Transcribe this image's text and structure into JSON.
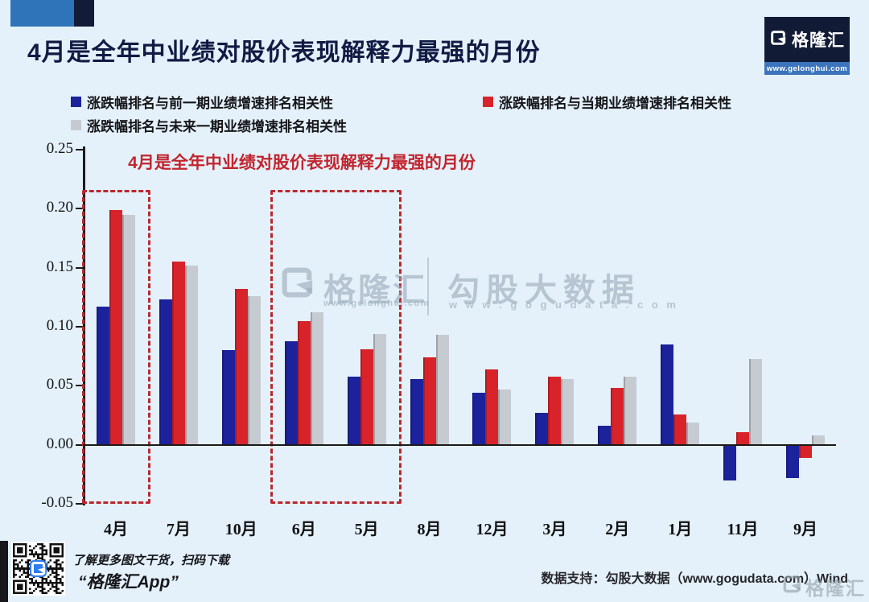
{
  "page": {
    "background": "#e4f1fa"
  },
  "header": {
    "title": "4月是全年中业绩对股价表现解释力最强的月份",
    "brand": {
      "name": "格隆汇",
      "url": "www.gelonghui.com"
    }
  },
  "legend": {
    "items": [
      {
        "label": "涨跌幅排名与前一期业绩增速排名相关性",
        "color": "#1c229b"
      },
      {
        "label": "涨跌幅排名与当期业绩增速排名相关性",
        "color": "#d9232a"
      },
      {
        "label": "涨跌幅排名与未来一期业绩增速排名相关性",
        "color": "#c6cbd1"
      }
    ]
  },
  "chart_data": {
    "type": "bar",
    "title": "4月是全年中业绩对股价表现解释力最强的月份",
    "title_color": "#c2252e",
    "categories": [
      "4月",
      "7月",
      "10月",
      "6月",
      "5月",
      "8月",
      "12月",
      "3月",
      "2月",
      "1月",
      "11月",
      "9月"
    ],
    "series": [
      {
        "name": "涨跌幅排名与前一期业绩增速排名相关性",
        "color": "#1c229b",
        "values": [
          0.117,
          0.123,
          0.08,
          0.088,
          0.058,
          0.056,
          0.044,
          0.027,
          0.016,
          0.085,
          -0.03,
          -0.028
        ]
      },
      {
        "name": "涨跌幅排名与当期业绩增速排名相关性",
        "color": "#d9232a",
        "values": [
          0.199,
          0.155,
          0.132,
          0.105,
          0.081,
          0.074,
          0.064,
          0.058,
          0.048,
          0.026,
          0.011,
          -0.011
        ]
      },
      {
        "name": "涨跌幅排名与未来一期业绩增速排名相关性",
        "color": "#c6cbd1",
        "values": [
          0.195,
          0.152,
          0.126,
          0.112,
          0.094,
          0.093,
          0.047,
          0.056,
          0.058,
          0.019,
          0.073,
          0.008
        ]
      }
    ],
    "ylim": [
      -0.05,
      0.25
    ],
    "yticks": [
      "0.25",
      "0.20",
      "0.15",
      "0.10",
      "0.05",
      "0.00",
      "-0.05"
    ],
    "grid": false,
    "legend_position": "top",
    "highlight_boxes": [
      {
        "from": 0,
        "to": 0
      },
      {
        "from": 3,
        "to": 4
      }
    ],
    "highlight_color": "#b8292f"
  },
  "watermark": {
    "brand": "格隆汇",
    "brand_url": "www.gelonghui.com",
    "partner": "勾股大数据",
    "partner_url": "w w w . g o g u d a t a . c o m"
  },
  "footer": {
    "qr_caption_line1": "了解更多图文干货，扫码下载",
    "qr_caption_line2": "“格隆汇App”",
    "data_support": "数据支持：勾股大数据（www.gogudata.com）Wind",
    "corner_brand": "格隆汇"
  },
  "icons": {
    "brand_logo": "gelonghui-g-icon",
    "qr": "qr-code-icon"
  }
}
